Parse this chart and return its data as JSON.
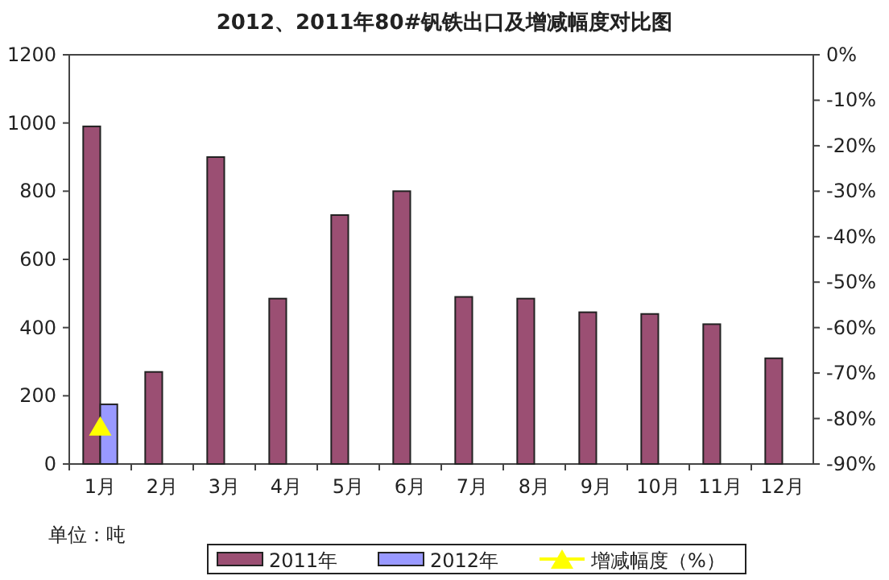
{
  "chart_data": {
    "type": "bar",
    "title": "2012、2011年80#钒铁出口及增减幅度对比图",
    "categories": [
      "1月",
      "2月",
      "3月",
      "4月",
      "5月",
      "6月",
      "7月",
      "8月",
      "9月",
      "10月",
      "11月",
      "12月"
    ],
    "series": [
      {
        "name": "2011年",
        "color": "#9b4f73",
        "values": [
          990,
          270,
          900,
          485,
          730,
          800,
          490,
          485,
          445,
          440,
          410,
          310
        ]
      },
      {
        "name": "2012年",
        "color": "#9999ff",
        "values": [
          175,
          null,
          null,
          null,
          null,
          null,
          null,
          null,
          null,
          null,
          null,
          null
        ]
      },
      {
        "name": "增减幅度（%）",
        "type": "line",
        "axis": "y2",
        "color": "#ffff00",
        "marker": "triangle",
        "values": [
          -82,
          null,
          null,
          null,
          null,
          null,
          null,
          null,
          null,
          null,
          null,
          null
        ]
      }
    ],
    "ylim": [
      0,
      1200
    ],
    "yticks": [
      0,
      200,
      400,
      600,
      800,
      1000,
      1200
    ],
    "y2lim": [
      -90,
      0
    ],
    "y2ticks": [
      {
        "value": 0,
        "label": "0%"
      },
      {
        "value": -10,
        "label": "-10%"
      },
      {
        "value": -20,
        "label": "-20%"
      },
      {
        "value": -30,
        "label": "-30%"
      },
      {
        "value": -40,
        "label": "-40%"
      },
      {
        "value": -50,
        "label": "-50%"
      },
      {
        "value": -60,
        "label": "-60%"
      },
      {
        "value": -70,
        "label": "-70%"
      },
      {
        "value": -80,
        "label": "-80%"
      },
      {
        "value": -90,
        "label": "-90%"
      }
    ],
    "annotations": [
      "单位：吨"
    ],
    "legend": "bottom",
    "grid": false
  }
}
